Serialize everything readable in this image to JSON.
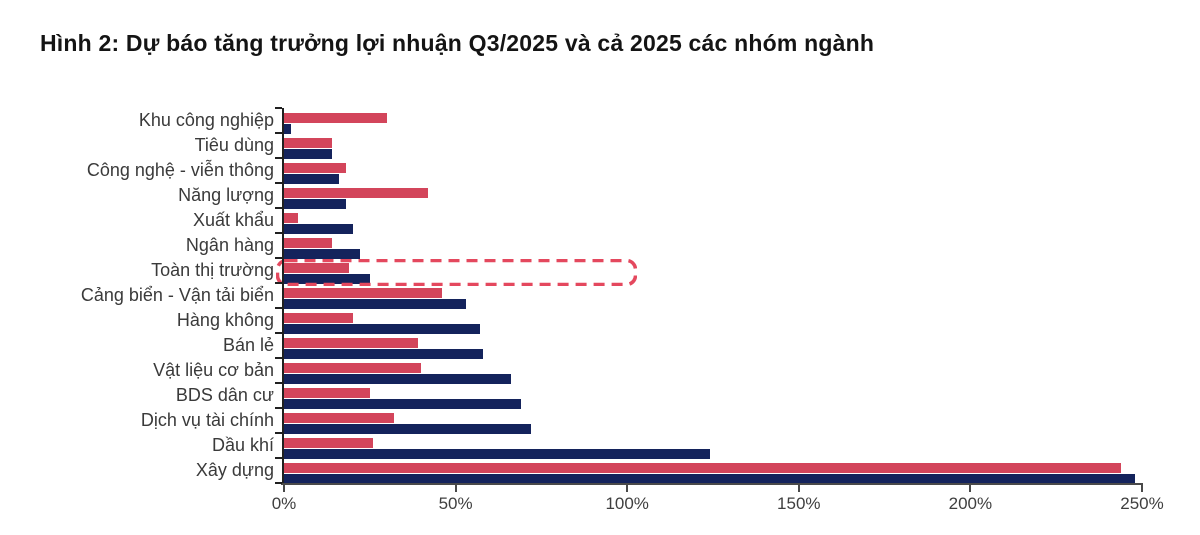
{
  "figure": {
    "title": "Hình 2: Dự báo tăng trưởng lợi nhuận Q3/2025 và cả 2025 các nhóm ngành"
  },
  "chart_data": {
    "type": "bar",
    "orientation": "horizontal",
    "title": "Hình 2: Dự báo tăng trưởng lợi nhuận Q3/2025 và cả 2025 các nhóm ngành",
    "categories": [
      "Khu công nghiệp",
      "Tiêu dùng",
      "Công nghệ - viễn thông",
      "Năng lượng",
      "Xuất khẩu",
      "Ngân hàng",
      "Toàn thị trường",
      "Cảng biển - Vận tải biển",
      "Hàng không",
      "Bán lẻ",
      "Vật liệu cơ bản",
      "BDS dân cư",
      "Dịch vụ tài chính",
      "Dầu khí",
      "Xây dựng"
    ],
    "series": [
      {
        "name": "red-series",
        "color": "#D3455B",
        "values": [
          30,
          14,
          18,
          42,
          4,
          14,
          19,
          46,
          20,
          39,
          40,
          25,
          32,
          26,
          244
        ]
      },
      {
        "name": "navy-series",
        "color": "#14235C",
        "values": [
          2,
          14,
          16,
          18,
          20,
          22,
          25,
          53,
          57,
          58,
          66,
          69,
          72,
          124,
          248
        ]
      }
    ],
    "unit": "%",
    "xlim": [
      0,
      250
    ],
    "x_tick_values": [
      0,
      50,
      100,
      150,
      200,
      250
    ],
    "x_tick_labels": [
      "0%",
      "50%",
      "100%",
      "150%",
      "200%",
      "250%"
    ],
    "grid": false,
    "legend": "none",
    "highlight": {
      "category": "Toàn thị trường",
      "style": "dashed-rounded-box",
      "color": "#E4485E",
      "extent_pct": 103
    }
  }
}
